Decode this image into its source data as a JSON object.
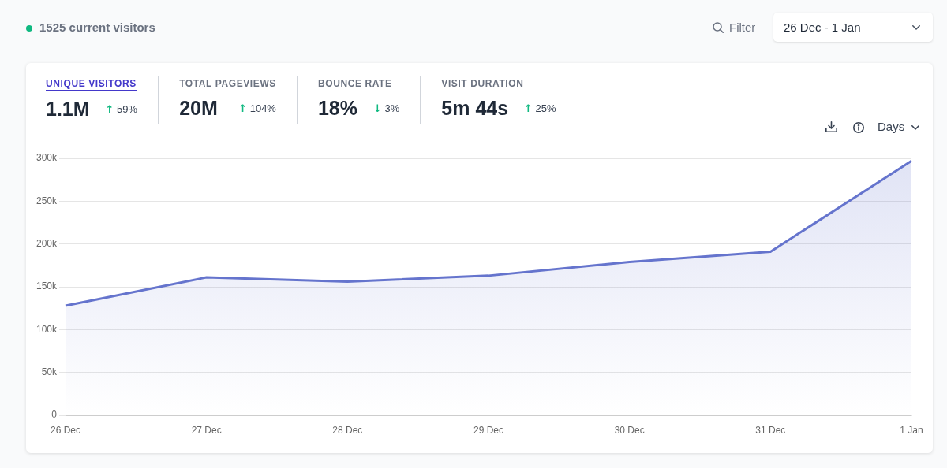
{
  "chart_data": {
    "type": "area",
    "categories": [
      "26 Dec",
      "27 Dec",
      "28 Dec",
      "29 Dec",
      "30 Dec",
      "31 Dec",
      "1 Jan"
    ],
    "values": [
      128000,
      161000,
      156000,
      163000,
      179000,
      191000,
      297000
    ],
    "color": "#6574cd",
    "ylim": [
      0,
      300000
    ],
    "yticks": [
      0,
      {
        "value": 50000,
        "label": "50k"
      },
      {
        "value": 100000,
        "label": "100k"
      },
      {
        "value": 150000,
        "label": "150k"
      },
      {
        "value": 200000,
        "label": "200k"
      },
      {
        "value": 250000,
        "label": "250k"
      },
      {
        "value": 300000,
        "label": "300k"
      }
    ],
    "grid": "y",
    "legend": false,
    "marker": "none",
    "annotations": [
      "1525 current visitors",
      "Filter",
      "26 Dec - 1 Jan",
      "UNIQUE VISITORS",
      "1.1M",
      "↑ 59%",
      "TOTAL PAGEVIEWS",
      "20M",
      "↑ 104%",
      "BOUNCE RATE",
      "18%",
      "↓ 3%",
      "VISIT DURATION",
      "5m 44s",
      "↑ 25%",
      "Days"
    ]
  }
}
